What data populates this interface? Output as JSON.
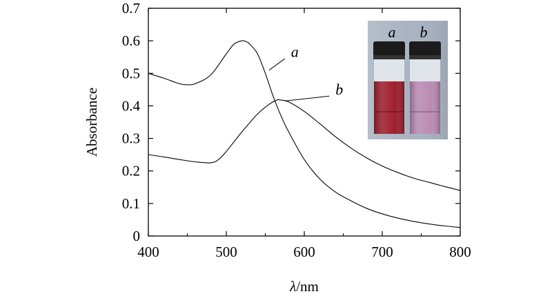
{
  "chart_data": {
    "type": "line",
    "xlabel_italic": "λ",
    "xlabel_rest": "/nm",
    "ylabel": "Absorbance",
    "xlim": [
      400,
      800
    ],
    "ylim": [
      0,
      0.7
    ],
    "xticks": [
      "400",
      "500",
      "600",
      "700",
      "800"
    ],
    "yticks": [
      "0",
      "0.1",
      "0.2",
      "0.3",
      "0.4",
      "0.5",
      "0.6",
      "0.7"
    ],
    "grid": false,
    "series": [
      {
        "name": "a",
        "x": [
          400,
          420,
          440,
          450,
          460,
          480,
          500,
          510,
          520,
          525,
          530,
          540,
          550,
          560,
          570,
          580,
          600,
          620,
          640,
          660,
          680,
          700,
          720,
          740,
          760,
          780,
          800
        ],
        "y": [
          0.5,
          0.485,
          0.468,
          0.465,
          0.468,
          0.495,
          0.56,
          0.59,
          0.6,
          0.598,
          0.59,
          0.56,
          0.5,
          0.43,
          0.37,
          0.32,
          0.235,
          0.175,
          0.135,
          0.108,
          0.085,
          0.068,
          0.055,
          0.045,
          0.037,
          0.031,
          0.026
        ]
      },
      {
        "name": "b",
        "x": [
          400,
          420,
          440,
          460,
          480,
          490,
          500,
          520,
          540,
          555,
          565,
          570,
          580,
          600,
          620,
          640,
          660,
          680,
          700,
          720,
          740,
          760,
          780,
          800
        ],
        "y": [
          0.25,
          0.243,
          0.235,
          0.228,
          0.225,
          0.235,
          0.26,
          0.32,
          0.375,
          0.405,
          0.418,
          0.418,
          0.412,
          0.383,
          0.345,
          0.305,
          0.27,
          0.24,
          0.215,
          0.195,
          0.178,
          0.165,
          0.152,
          0.14
        ]
      }
    ],
    "annotations": [
      {
        "text": "a",
        "target_series": "a"
      },
      {
        "text": "b",
        "target_series": "b"
      }
    ]
  },
  "inset": {
    "vial_labels": [
      "a",
      "b"
    ],
    "colors": {
      "vial_a_solution": "#9e1f2e",
      "vial_b_solution": "#b98bb4",
      "cap": "#1a1a1a",
      "background": "#a9b3c2"
    }
  }
}
